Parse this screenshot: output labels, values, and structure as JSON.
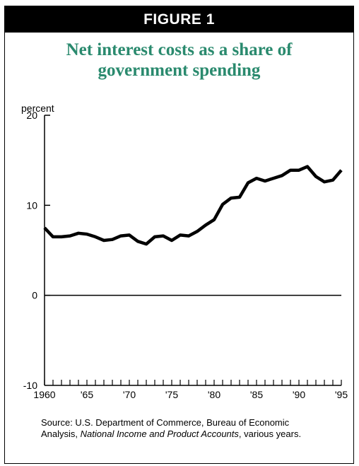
{
  "header": {
    "figure_label": "FIGURE 1"
  },
  "title_line1": "Net interest costs as a share of",
  "title_line2": "government spending",
  "source": {
    "prefix": "Source: U.S. Department of Commerce, Bureau of Economic Analysis, ",
    "italic": "National Income and Product Accounts",
    "suffix": ", various years."
  },
  "chart_data": {
    "type": "line",
    "title": "Net interest costs as a share of government spending",
    "ylabel": "percent",
    "xlabel": "",
    "ylim": [
      -10,
      20
    ],
    "yticks": [
      -10,
      0,
      10,
      20
    ],
    "xlim": [
      1960,
      1995
    ],
    "xtick_labels": [
      {
        "x": 1960,
        "label": "1960"
      },
      {
        "x": 1965,
        "label": "'65"
      },
      {
        "x": 1970,
        "label": "'70"
      },
      {
        "x": 1975,
        "label": "'75"
      },
      {
        "x": 1980,
        "label": "'80"
      },
      {
        "x": 1985,
        "label": "'85"
      },
      {
        "x": 1990,
        "label": "'90"
      },
      {
        "x": 1995,
        "label": "'95"
      }
    ],
    "grid": false,
    "series": [
      {
        "x": [
          1960,
          1961,
          1962,
          1963,
          1964,
          1965,
          1966,
          1967,
          1968,
          1969,
          1970,
          1971,
          1972,
          1973,
          1974,
          1975,
          1976,
          1977,
          1978,
          1979,
          1980,
          1981,
          1982,
          1983,
          1984,
          1985,
          1986,
          1987,
          1988,
          1989,
          1990,
          1991,
          1992,
          1993,
          1994,
          1995
        ],
        "y": [
          7.5,
          6.5,
          6.5,
          6.6,
          6.9,
          6.8,
          6.5,
          6.1,
          6.2,
          6.6,
          6.7,
          6.0,
          5.7,
          6.5,
          6.6,
          6.1,
          6.7,
          6.6,
          7.1,
          7.8,
          8.4,
          10.1,
          10.8,
          10.9,
          12.5,
          13.0,
          12.7,
          13.0,
          13.3,
          13.9,
          13.9,
          14.3,
          13.2,
          12.6,
          12.8,
          13.9
        ]
      }
    ]
  }
}
